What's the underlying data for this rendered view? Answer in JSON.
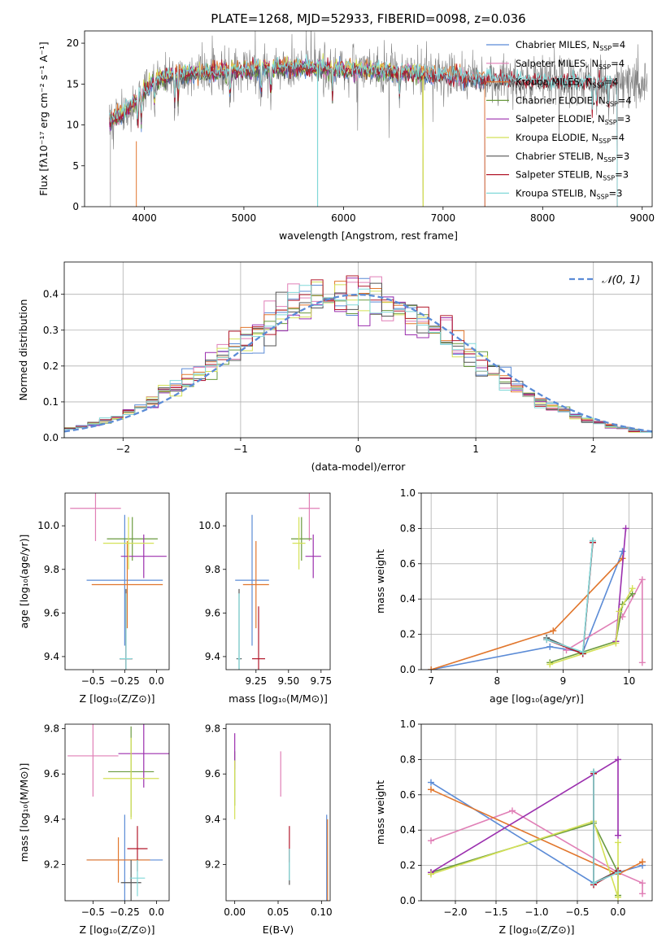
{
  "colors": {
    "Chabrier MILES": "#5b8bd6",
    "Salpeter MILES": "#e07fb6",
    "Kroupa MILES": "#e1762c",
    "Chabrier ELODIE": "#6a9a3f",
    "Salpeter ELODIE": "#9b2fae",
    "Kroupa ELODIE": "#d4e157",
    "Chabrier STELIB": "#555555",
    "Salpeter STELIB": "#b2182b",
    "Kroupa STELIB": "#80d8d8",
    "data": "#808080",
    "normal_curve": "#5b8bd6"
  },
  "chart_data": [
    {
      "id": "spectrum",
      "type": "line",
      "title": "PLATE=1268, MJD=52933, FIBERID=0098, z=0.036",
      "xlabel": "wavelength [Angstrom, rest frame]",
      "ylabel": "Flux [fλ10⁻¹⁷ erg cm⁻² s⁻¹ A⁻¹]",
      "xlim": [
        3400,
        9100
      ],
      "ylim": [
        0,
        21.5
      ],
      "xticks": [
        4000,
        5000,
        6000,
        7000,
        8000,
        9000
      ],
      "yticks": [
        0,
        5,
        10,
        15,
        20
      ],
      "legend_position": "upper-right",
      "data_range": [
        3650,
        9050
      ],
      "continuum": [
        [
          3650,
          10.5
        ],
        [
          3800,
          11.5
        ],
        [
          3950,
          13.5
        ],
        [
          4100,
          15.5
        ],
        [
          4400,
          16.3
        ],
        [
          4800,
          16.5
        ],
        [
          5200,
          16.9
        ],
        [
          5600,
          17.0
        ],
        [
          6000,
          16.8
        ],
        [
          6500,
          16.5
        ],
        [
          7000,
          16.0
        ],
        [
          7500,
          15.6
        ],
        [
          8000,
          15.3
        ],
        [
          8500,
          15.2
        ],
        [
          9050,
          15.1
        ]
      ],
      "series": [
        {
          "name": "Chabrier MILES, N",
          "sub": "SSP",
          "suffix": "=4",
          "end": 7420
        },
        {
          "name": "Salpeter MILES, N",
          "sub": "SSP",
          "suffix": "=4",
          "end": 7420
        },
        {
          "name": "Kroupa MILES, N",
          "sub": "SSP",
          "suffix": "=4",
          "end": 7420
        },
        {
          "name": "Chabrier ELODIE, N",
          "sub": "SSP",
          "suffix": "=4",
          "end": 6800
        },
        {
          "name": "Salpeter ELODIE, N",
          "sub": "SSP",
          "suffix": "=3",
          "end": 6800
        },
        {
          "name": "Kroupa ELODIE, N",
          "sub": "SSP",
          "suffix": "=4",
          "end": 6800
        },
        {
          "name": "Chabrier STELIB, N",
          "sub": "SSP",
          "suffix": "=3",
          "end": 8750
        },
        {
          "name": "Salpeter STELIB, N",
          "sub": "SSP",
          "suffix": "=3",
          "end": 8750
        },
        {
          "name": "Kroupa STELIB, N",
          "sub": "SSP",
          "suffix": "=3",
          "end": 8750
        }
      ]
    },
    {
      "id": "residuals",
      "type": "histogram",
      "xlabel": "(data-model)/error",
      "ylabel": "Normed distribution",
      "xlim": [
        -2.5,
        2.5
      ],
      "ylim": [
        0,
        0.49
      ],
      "xticks": [
        -2,
        -1,
        0,
        1,
        2
      ],
      "xtick_labels": [
        "−2",
        "−1",
        "0",
        "1",
        "2"
      ],
      "yticks": [
        0.0,
        0.1,
        0.2,
        0.3,
        0.4
      ],
      "yticks_labels": [
        "0.0",
        "0.1",
        "0.2",
        "0.3",
        "0.4"
      ],
      "bin_width": 0.1,
      "grid": true,
      "legend_position": "upper-right",
      "legend_label": "𝒩(0, 1)"
    },
    {
      "id": "z-age",
      "type": "errorbar",
      "xlabel": "Z [log₁₀(Z/Z⊙)]",
      "ylabel": "age  [log₁₀(age/yr)]",
      "xlim": [
        -0.72,
        0.1
      ],
      "ylim": [
        9.34,
        10.15
      ],
      "xticks": [
        -0.5,
        -0.25,
        0.0
      ],
      "xtick_labels": [
        "−0.5",
        "−0.25",
        "0.0"
      ],
      "yticks": [
        9.4,
        9.6,
        9.8,
        10.0
      ],
      "ytick_labels": [
        "9.4",
        "9.6",
        "9.8",
        "10.0"
      ],
      "points": [
        {
          "series": "Chabrier MILES",
          "x": -0.25,
          "y": 9.75,
          "xerr": 0.3,
          "yerr": 0.3
        },
        {
          "series": "Salpeter MILES",
          "x": -0.48,
          "y": 10.08,
          "xerr": 0.2,
          "yerr": 0.15
        },
        {
          "series": "Kroupa MILES",
          "x": -0.23,
          "y": 9.73,
          "xerr": 0.28,
          "yerr": 0.2
        },
        {
          "series": "Chabrier ELODIE",
          "x": -0.19,
          "y": 9.94,
          "xerr": 0.2,
          "yerr": 0.1
        },
        {
          "series": "Salpeter ELODIE",
          "x": -0.1,
          "y": 9.86,
          "xerr": 0.18,
          "yerr": 0.1
        },
        {
          "series": "Kroupa ELODIE",
          "x": -0.22,
          "y": 9.92,
          "xerr": 0.2,
          "yerr": 0.12
        },
        {
          "series": "Chabrier STELIB",
          "x": -0.24,
          "y": 9.39,
          "xerr": 0.05,
          "yerr": 0.32
        },
        {
          "series": "Salpeter STELIB",
          "x": -0.24,
          "y": 9.39,
          "xerr": 0.05,
          "yerr": 0.3
        },
        {
          "series": "Kroupa STELIB",
          "x": -0.24,
          "y": 9.39,
          "xerr": 0.05,
          "yerr": 0.3
        }
      ]
    },
    {
      "id": "mass-age",
      "type": "errorbar",
      "xlabel": "mass [log₁₀(M/M⊙)]",
      "ylabel": "",
      "xlim": [
        9.02,
        9.82
      ],
      "ylim": [
        9.34,
        10.15
      ],
      "xticks": [
        9.25,
        9.5,
        9.75
      ],
      "xtick_labels": [
        "9.25",
        "9.50",
        "9.75"
      ],
      "yticks": [
        9.4,
        9.6,
        9.8,
        10.0
      ],
      "ytick_labels": [
        "9.4",
        "9.6",
        "9.8",
        "10.0"
      ],
      "points": [
        {
          "series": "Chabrier MILES",
          "x": 9.22,
          "y": 9.75,
          "xerr": 0.13,
          "yerr": 0.3
        },
        {
          "series": "Salpeter MILES",
          "x": 9.66,
          "y": 10.08,
          "xerr": 0.08,
          "yerr": 0.15
        },
        {
          "series": "Kroupa MILES",
          "x": 9.25,
          "y": 9.73,
          "xerr": 0.1,
          "yerr": 0.2
        },
        {
          "series": "Chabrier ELODIE",
          "x": 9.6,
          "y": 9.94,
          "xerr": 0.08,
          "yerr": 0.1
        },
        {
          "series": "Salpeter ELODIE",
          "x": 9.69,
          "y": 9.86,
          "xerr": 0.06,
          "yerr": 0.1
        },
        {
          "series": "Kroupa ELODIE",
          "x": 9.58,
          "y": 9.92,
          "xerr": 0.05,
          "yerr": 0.12
        },
        {
          "series": "Chabrier STELIB",
          "x": 9.12,
          "y": 9.39,
          "xerr": 0.02,
          "yerr": 0.32
        },
        {
          "series": "Salpeter STELIB",
          "x": 9.27,
          "y": 9.39,
          "xerr": 0.05,
          "yerr": 0.24
        },
        {
          "series": "Kroupa STELIB",
          "x": 9.12,
          "y": 9.39,
          "xerr": 0.01,
          "yerr": 0.3
        }
      ]
    },
    {
      "id": "weight-age",
      "type": "line",
      "xlabel": "age  [log₁₀(age/yr)]",
      "ylabel": "mass weight",
      "xlim": [
        6.85,
        10.35
      ],
      "ylim": [
        0,
        1
      ],
      "xticks": [
        7,
        8,
        9,
        10
      ],
      "xtick_labels": [
        "7",
        "8",
        "9",
        "10"
      ],
      "yticks": [
        0,
        0.2,
        0.4,
        0.6,
        0.8,
        1.0
      ],
      "ytick_labels": [
        "0.0",
        "0.2",
        "0.4",
        "0.6",
        "0.8",
        "1.0"
      ],
      "grid": true,
      "series": [
        {
          "name": "Chabrier MILES",
          "x": [
            7.0,
            8.8,
            9.3,
            9.9
          ],
          "y": [
            0.0,
            0.13,
            0.1,
            0.67
          ]
        },
        {
          "name": "Salpeter MILES",
          "x": [
            9.05,
            9.9,
            10.2,
            10.2
          ],
          "y": [
            0.11,
            0.3,
            0.51,
            0.04
          ]
        },
        {
          "name": "Kroupa MILES",
          "x": [
            7.0,
            8.85,
            9.9
          ],
          "y": [
            0.0,
            0.22,
            0.63
          ]
        },
        {
          "name": "Chabrier ELODIE",
          "x": [
            8.8,
            9.8,
            9.9,
            10.05
          ],
          "y": [
            0.04,
            0.16,
            0.37,
            0.43
          ]
        },
        {
          "name": "Salpeter ELODIE",
          "x": [
            9.8,
            9.95
          ],
          "y": [
            0.16,
            0.8
          ]
        },
        {
          "name": "Kroupa ELODIE",
          "x": [
            8.8,
            9.8,
            9.85,
            10.05
          ],
          "y": [
            0.03,
            0.15,
            0.33,
            0.46
          ]
        },
        {
          "name": "Chabrier STELIB",
          "x": [
            8.75,
            9.3,
            9.45
          ],
          "y": [
            0.18,
            0.09,
            0.73
          ]
        },
        {
          "name": "Salpeter STELIB",
          "x": [
            8.75,
            9.3,
            9.45
          ],
          "y": [
            0.17,
            0.09,
            0.72
          ]
        },
        {
          "name": "Kroupa STELIB",
          "x": [
            8.75,
            9.3,
            9.45
          ],
          "y": [
            0.17,
            0.1,
            0.73
          ]
        }
      ]
    },
    {
      "id": "z-mass",
      "type": "errorbar",
      "xlabel": "Z [log₁₀(Z/Z⊙)]",
      "ylabel": "mass [log₁₀(M/M⊙)]",
      "xlim": [
        -0.72,
        0.1
      ],
      "ylim": [
        9.04,
        9.82
      ],
      "xticks": [
        -0.5,
        -0.25,
        0.0
      ],
      "xtick_labels": [
        "−0.5",
        "−0.25",
        "0.0"
      ],
      "yticks": [
        9.2,
        9.4,
        9.6,
        9.8
      ],
      "ytick_labels": [
        "9.2",
        "9.4",
        "9.6",
        "9.8"
      ],
      "points": [
        {
          "series": "Chabrier MILES",
          "x": -0.25,
          "y": 9.22,
          "xerr": 0.3,
          "yerr": 0.2
        },
        {
          "series": "Salpeter MILES",
          "x": -0.5,
          "y": 9.68,
          "xerr": 0.2,
          "yerr": 0.18
        },
        {
          "series": "Kroupa MILES",
          "x": -0.3,
          "y": 9.22,
          "xerr": 0.25,
          "yerr": 0.1
        },
        {
          "series": "Chabrier ELODIE",
          "x": -0.2,
          "y": 9.61,
          "xerr": 0.18,
          "yerr": 0.2
        },
        {
          "series": "Salpeter ELODIE",
          "x": -0.1,
          "y": 9.69,
          "xerr": 0.2,
          "yerr": 0.15
        },
        {
          "series": "Kroupa ELODIE",
          "x": -0.2,
          "y": 9.58,
          "xerr": 0.22,
          "yerr": 0.18
        },
        {
          "series": "Chabrier STELIB",
          "x": -0.2,
          "y": 9.12,
          "xerr": 0.08,
          "yerr": 0.1
        },
        {
          "series": "Salpeter STELIB",
          "x": -0.15,
          "y": 9.27,
          "xerr": 0.08,
          "yerr": 0.1
        },
        {
          "series": "Kroupa STELIB",
          "x": -0.15,
          "y": 9.14,
          "xerr": 0.06,
          "yerr": 0.08
        }
      ]
    },
    {
      "id": "ebv-mass",
      "type": "errorbar",
      "xlabel": "E(B-V)",
      "ylabel": "",
      "xlim": [
        -0.01,
        0.11
      ],
      "ylim": [
        9.04,
        9.82
      ],
      "xticks": [
        0.0,
        0.05,
        0.1
      ],
      "xtick_labels": [
        "0.00",
        "0.05",
        "0.10"
      ],
      "yticks": [
        9.2,
        9.4,
        9.6,
        9.8
      ],
      "ytick_labels": [
        "9.2",
        "9.4",
        "9.6",
        "9.8"
      ],
      "points": [
        {
          "series": "Chabrier MILES",
          "x": 0.106,
          "y": 9.2,
          "xerr": 0,
          "yerr": 0.22
        },
        {
          "series": "Salpeter MILES",
          "x": 0.053,
          "y": 9.6,
          "xerr": 0,
          "yerr": 0.1
        },
        {
          "series": "Kroupa MILES",
          "x": 0.107,
          "y": 9.2,
          "xerr": 0,
          "yerr": 0.2
        },
        {
          "series": "Chabrier ELODIE",
          "x": 0.0,
          "y": 9.58,
          "xerr": 0,
          "yerr": 0.12
        },
        {
          "series": "Salpeter ELODIE",
          "x": 0.0,
          "y": 9.7,
          "xerr": 0,
          "yerr": 0.08
        },
        {
          "series": "Kroupa ELODIE",
          "x": 0.0,
          "y": 9.53,
          "xerr": 0,
          "yerr": 0.13
        },
        {
          "series": "Chabrier STELIB",
          "x": 0.063,
          "y": 9.19,
          "xerr": 0,
          "yerr": 0.08
        },
        {
          "series": "Salpeter STELIB",
          "x": 0.063,
          "y": 9.29,
          "xerr": 0,
          "yerr": 0.08
        },
        {
          "series": "Kroupa STELIB",
          "x": 0.063,
          "y": 9.2,
          "xerr": 0,
          "yerr": 0.07
        }
      ]
    },
    {
      "id": "weight-z",
      "type": "line",
      "xlabel": "Z [log₁₀(Z/Z⊙)]",
      "ylabel": "mass weight",
      "xlim": [
        -2.42,
        0.42
      ],
      "ylim": [
        0,
        1
      ],
      "xticks": [
        -2.0,
        -1.5,
        -1.0,
        -0.5,
        0.0
      ],
      "xtick_labels": [
        "−2.0",
        "−1.5",
        "−1.0",
        "−0.5",
        "0.0"
      ],
      "yticks": [
        0,
        0.2,
        0.4,
        0.6,
        0.8,
        1.0
      ],
      "ytick_labels": [
        "0.0",
        "0.2",
        "0.4",
        "0.6",
        "0.8",
        "1.0"
      ],
      "grid": true,
      "series": [
        {
          "name": "Chabrier MILES",
          "x": [
            -2.3,
            -0.3,
            0.0,
            0.3
          ],
          "y": [
            0.67,
            0.1,
            0.16,
            0.2
          ]
        },
        {
          "name": "Salpeter MILES",
          "x": [
            -2.3,
            -1.3,
            0.0,
            0.3,
            0.3
          ],
          "y": [
            0.34,
            0.51,
            0.16,
            0.1,
            0.04
          ]
        },
        {
          "name": "Kroupa MILES",
          "x": [
            -2.3,
            0.0,
            0.3
          ],
          "y": [
            0.63,
            0.15,
            0.22
          ]
        },
        {
          "name": "Chabrier ELODIE",
          "x": [
            -2.3,
            -0.3,
            0.0,
            0.0
          ],
          "y": [
            0.16,
            0.44,
            0.16,
            0.03
          ]
        },
        {
          "name": "Salpeter ELODIE",
          "x": [
            -2.3,
            0.0,
            0.0
          ],
          "y": [
            0.16,
            0.8,
            0.37
          ]
        },
        {
          "name": "Kroupa ELODIE",
          "x": [
            -2.3,
            -0.3,
            0.0,
            0.0
          ],
          "y": [
            0.15,
            0.45,
            0.02,
            0.33
          ]
        },
        {
          "name": "Chabrier STELIB",
          "x": [
            -0.3,
            -0.3,
            0.0
          ],
          "y": [
            0.73,
            0.1,
            0.17
          ]
        },
        {
          "name": "Salpeter STELIB",
          "x": [
            -0.3,
            -0.3,
            0.0
          ],
          "y": [
            0.72,
            0.09,
            0.17
          ]
        },
        {
          "name": "Kroupa STELIB",
          "x": [
            -0.3,
            -0.3,
            0.0
          ],
          "y": [
            0.73,
            0.1,
            0.16
          ]
        }
      ]
    }
  ]
}
